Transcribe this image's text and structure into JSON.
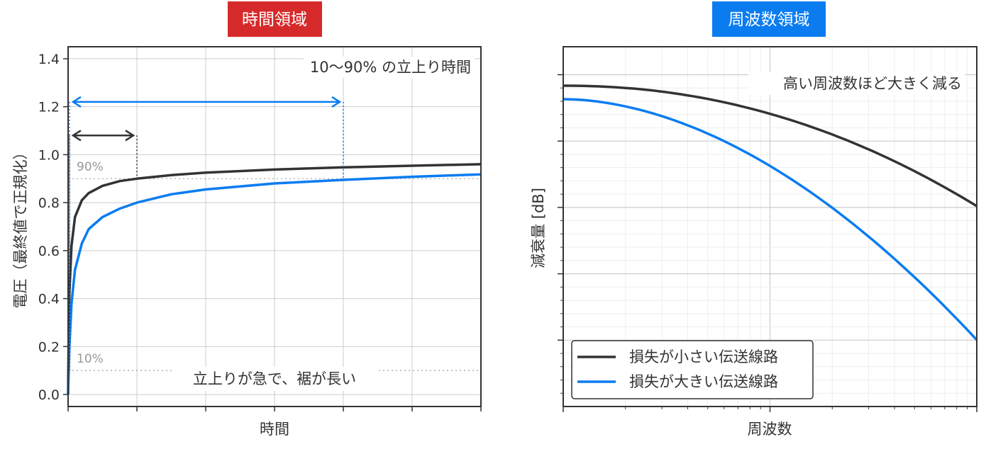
{
  "colors": {
    "dark": "#333333",
    "blue": "#0a7cf0",
    "red_badge": "#d62a2a",
    "blue_badge": "#0a7cf0",
    "grid": "#cccccc",
    "minor_grid": "#eeeeee",
    "ref_line": "#aaaaaa"
  },
  "chart_data": [
    {
      "type": "line",
      "title": "時間領域",
      "xlabel": "時間",
      "ylabel": "電圧（最終値で正規化）",
      "xlim": [
        0,
        6
      ],
      "ylim": [
        -0.05,
        1.45
      ],
      "yticks": [
        0.0,
        0.2,
        0.4,
        0.6,
        0.8,
        1.0,
        1.2,
        1.4
      ],
      "ytick_labels": [
        "0.0",
        "0.2",
        "0.4",
        "0.6",
        "0.8",
        "1.0",
        "1.2",
        "1.4"
      ],
      "xticks": [
        0,
        1,
        2,
        3,
        4,
        5,
        6
      ],
      "x_tick_labels_shown": false,
      "grid": true,
      "series": [
        {
          "key": "low_loss",
          "color": "dark",
          "x": [
            0,
            0.01,
            0.02,
            0.05,
            0.1,
            0.2,
            0.3,
            0.5,
            0.75,
            1.0,
            1.5,
            2.0,
            3.0,
            4.0,
            5.0,
            6.0
          ],
          "y": [
            0,
            0.3,
            0.43,
            0.62,
            0.74,
            0.81,
            0.84,
            0.87,
            0.89,
            0.9,
            0.915,
            0.925,
            0.938,
            0.947,
            0.954,
            0.96
          ]
        },
        {
          "key": "high_loss",
          "color": "blue",
          "x": [
            0,
            0.02,
            0.05,
            0.1,
            0.2,
            0.3,
            0.5,
            0.75,
            1.0,
            1.5,
            2.0,
            3.0,
            4.0,
            5.0,
            6.0
          ],
          "y": [
            0,
            0.2,
            0.38,
            0.52,
            0.63,
            0.69,
            0.74,
            0.775,
            0.8,
            0.835,
            0.855,
            0.88,
            0.895,
            0.908,
            0.918
          ]
        }
      ],
      "ref_lines": [
        {
          "y": 0.9,
          "label": "90%"
        },
        {
          "y": 0.1,
          "label": "10%"
        }
      ],
      "rise_markers": [
        {
          "color": "dark",
          "x_start": 0.02,
          "x_end": 1.0,
          "arrow_y": 1.08
        },
        {
          "color": "blue",
          "x_start": 0.02,
          "x_end": 4.0,
          "arrow_y": 1.22
        }
      ],
      "annotations": {
        "rise_time": "10〜90% の立上り時間",
        "tail": "立上りが急で、裾が長い"
      }
    },
    {
      "type": "line",
      "title": "周波数領域",
      "xlabel": "周波数",
      "ylabel": "減衰量 [dB]",
      "xscale": "log",
      "tick_labels_shown": false,
      "grid": true,
      "series": [
        {
          "name": "損失が小さい伝送線路",
          "color": "dark"
        },
        {
          "name": "損失が大きい伝送線路",
          "color": "blue"
        }
      ],
      "annotations": {
        "trend": "高い周波数ほど大きく減る"
      },
      "legend_position": "lower-left"
    }
  ]
}
